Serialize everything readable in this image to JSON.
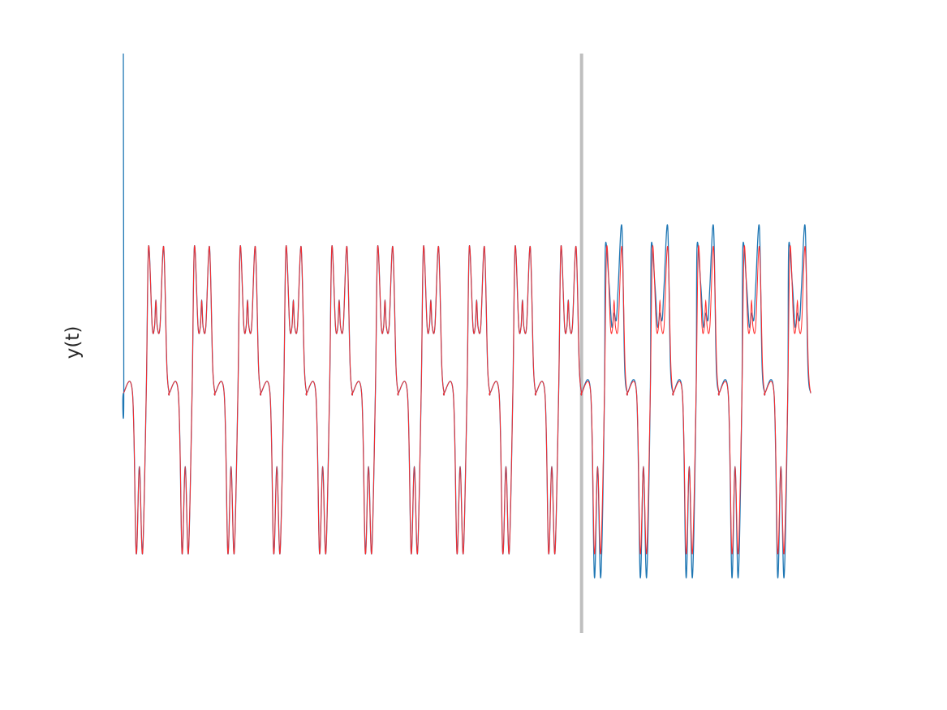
{
  "chart_data": {
    "type": "line",
    "title": "",
    "xlabel": "",
    "ylabel": "y(t)",
    "grid": false,
    "legend": "none",
    "xlim": [
      0,
      1.5
    ],
    "ylim": [
      -2.2,
      2.15
    ],
    "split_marker": {
      "x": 1.0,
      "color": "#bfbfbf"
    },
    "series": [
      {
        "color": "#1f77b4",
        "stroke_width": 1.3,
        "x_start": 0,
        "x_end": 1.5,
        "period": 0.1,
        "initial_spike": {
          "x": 0,
          "value": 2.15
        },
        "samples_per_period": [
          [
            0.0,
            -0.4
          ],
          [
            0.045,
            -0.4
          ],
          [
            0.055,
            0.7
          ],
          [
            0.063,
            0.1
          ],
          [
            0.068,
            0.1
          ],
          [
            0.071,
            0.3
          ],
          [
            0.074,
            0.1
          ],
          [
            0.08,
            0.1
          ],
          [
            0.088,
            0.7
          ],
          [
            0.095,
            -0.2
          ],
          [
            0.1,
            -0.4
          ]
        ],
        "after_split_samples_per_period": [
          [
            0.0,
            -0.4
          ],
          [
            0.045,
            -0.4
          ],
          [
            0.052,
            0.7
          ],
          [
            0.06,
            0.42
          ],
          [
            0.066,
            0.1
          ],
          [
            0.071,
            0.2
          ],
          [
            0.076,
            0.15
          ],
          [
            0.08,
            0.4
          ],
          [
            0.088,
            0.85
          ],
          [
            0.094,
            -0.2
          ],
          [
            0.1,
            -0.4
          ]
        ],
        "trough_samples": [
          [
            0.0,
            -0.4
          ],
          [
            0.008,
            -1.6
          ],
          [
            0.015,
            -0.95
          ],
          [
            0.022,
            -1.6
          ],
          [
            0.03,
            -0.4
          ]
        ],
        "after_split_trough_samples": [
          [
            0.0,
            -0.4
          ],
          [
            0.008,
            -1.78
          ],
          [
            0.015,
            -0.95
          ],
          [
            0.022,
            -1.78
          ],
          [
            0.03,
            -0.4
          ]
        ]
      },
      {
        "color": "#ff2a2a",
        "stroke_width": 1.0,
        "x_start": 0,
        "x_end": 1.5,
        "period": 0.1,
        "samples_per_period": [
          [
            0.0,
            -0.4
          ],
          [
            0.045,
            -0.4
          ],
          [
            0.055,
            0.7
          ],
          [
            0.063,
            0.1
          ],
          [
            0.068,
            0.1
          ],
          [
            0.071,
            0.3
          ],
          [
            0.074,
            0.1
          ],
          [
            0.08,
            0.1
          ],
          [
            0.088,
            0.7
          ],
          [
            0.095,
            -0.2
          ],
          [
            0.1,
            -0.4
          ]
        ],
        "trough_samples": [
          [
            0.0,
            -0.4
          ],
          [
            0.008,
            -1.6
          ],
          [
            0.015,
            -0.95
          ],
          [
            0.022,
            -1.6
          ],
          [
            0.03,
            -0.4
          ]
        ]
      }
    ]
  }
}
